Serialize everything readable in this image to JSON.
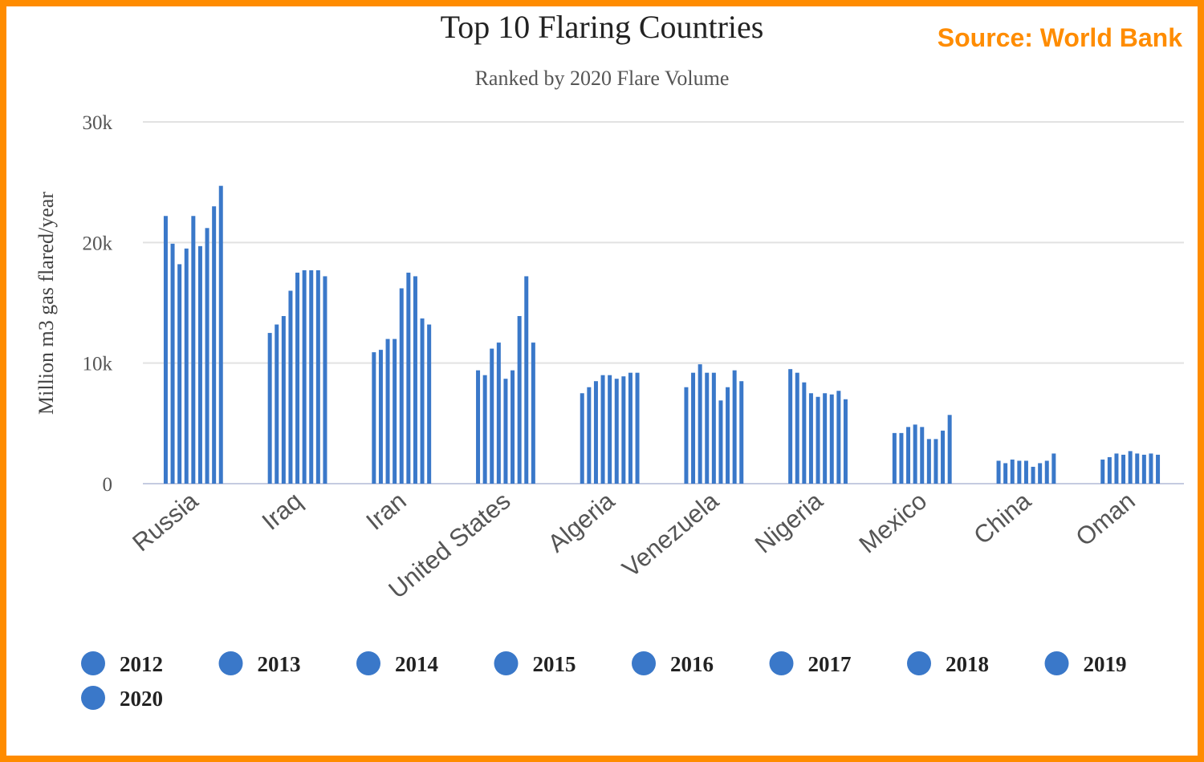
{
  "source_label": "Source: World Bank",
  "colors": {
    "bar": "#3a78c9",
    "border": "#ff8c00",
    "source": "#ff8c00",
    "grid": "#e2e2e2",
    "axis": "#c5cbe0"
  },
  "chart_data": {
    "type": "bar",
    "title": "Top 10 Flaring Countries",
    "subtitle": "Ranked by 2020 Flare Volume",
    "xlabel": "",
    "ylabel": "Million m3 gas flared/year",
    "ylim": [
      0,
      30000
    ],
    "yticks": [
      0,
      10000,
      20000,
      30000
    ],
    "ytick_labels": [
      "0",
      "10k",
      "20k",
      "30k"
    ],
    "grid": true,
    "legend_placement": "bottom",
    "categories": [
      "Russia",
      "Iraq",
      "Iran",
      "United States",
      "Algeria",
      "Venezuela",
      "Nigeria",
      "Mexico",
      "China",
      "Oman"
    ],
    "series": [
      {
        "name": "2012",
        "values": [
          22200,
          12500,
          10900,
          9400,
          7500,
          8000,
          9500,
          4200,
          1900,
          2000
        ]
      },
      {
        "name": "2013",
        "values": [
          19900,
          13200,
          11100,
          9000,
          8000,
          9200,
          9200,
          4200,
          1700,
          2200
        ]
      },
      {
        "name": "2014",
        "values": [
          18200,
          13900,
          12000,
          11200,
          8500,
          9900,
          8400,
          4700,
          2000,
          2500
        ]
      },
      {
        "name": "2015",
        "values": [
          19500,
          16000,
          12000,
          11700,
          9000,
          9200,
          7500,
          4900,
          1900,
          2400
        ]
      },
      {
        "name": "2016",
        "values": [
          22200,
          17500,
          16200,
          8700,
          9000,
          9200,
          7200,
          4700,
          1900,
          2700
        ]
      },
      {
        "name": "2017",
        "values": [
          19700,
          17700,
          17500,
          9400,
          8700,
          6900,
          7500,
          3700,
          1400,
          2500
        ]
      },
      {
        "name": "2018",
        "values": [
          21200,
          17700,
          17200,
          13900,
          8900,
          8000,
          7400,
          3700,
          1700,
          2400
        ]
      },
      {
        "name": "2019",
        "values": [
          23000,
          17700,
          13700,
          17200,
          9200,
          9400,
          7700,
          4400,
          1900,
          2500
        ]
      },
      {
        "name": "2020",
        "values": [
          24700,
          17200,
          13200,
          11700,
          9200,
          8500,
          7000,
          5700,
          2500,
          2400
        ]
      }
    ]
  }
}
